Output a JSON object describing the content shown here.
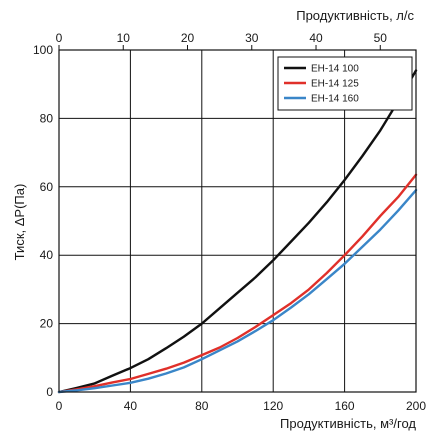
{
  "chart_data": {
    "type": "line",
    "xlabel": "Продуктивність, м³/год",
    "ylabel": "Тиск,  ΔР(Па)",
    "x2label": "Продуктивність, л/с",
    "xlim": [
      0,
      200
    ],
    "ylim": [
      0,
      100
    ],
    "x2lim": [
      0,
      55.56
    ],
    "xticks": [
      0,
      40,
      80,
      120,
      160,
      200
    ],
    "yticks": [
      0,
      20,
      40,
      60,
      80,
      100
    ],
    "x2ticks": [
      0,
      10,
      20,
      30,
      40,
      50
    ],
    "grid": true,
    "legend_position": "top-right",
    "series": [
      {
        "name": "ЕН-14 100",
        "color": "#111111",
        "points": [
          [
            0,
            0
          ],
          [
            10,
            1.2
          ],
          [
            20,
            2.5
          ],
          [
            30,
            4.8
          ],
          [
            40,
            7
          ],
          [
            50,
            9.6
          ],
          [
            60,
            12.8
          ],
          [
            70,
            16.2
          ],
          [
            80,
            20
          ],
          [
            90,
            24.5
          ],
          [
            100,
            29
          ],
          [
            110,
            33.5
          ],
          [
            120,
            38.5
          ],
          [
            130,
            44
          ],
          [
            140,
            49.5
          ],
          [
            150,
            55.5
          ],
          [
            160,
            62
          ],
          [
            170,
            69
          ],
          [
            180,
            76.5
          ],
          [
            190,
            85
          ],
          [
            200,
            94
          ]
        ]
      },
      {
        "name": "ЕН-14 125",
        "color": "#e0302a",
        "points": [
          [
            0,
            0
          ],
          [
            10,
            0.8
          ],
          [
            20,
            1.7
          ],
          [
            30,
            2.8
          ],
          [
            40,
            3.8
          ],
          [
            50,
            5.3
          ],
          [
            60,
            6.8
          ],
          [
            70,
            8.6
          ],
          [
            80,
            10.8
          ],
          [
            90,
            13
          ],
          [
            100,
            15.8
          ],
          [
            110,
            19
          ],
          [
            120,
            22.5
          ],
          [
            130,
            26
          ],
          [
            140,
            30
          ],
          [
            150,
            34.8
          ],
          [
            160,
            40
          ],
          [
            170,
            45.5
          ],
          [
            180,
            51.5
          ],
          [
            190,
            57
          ],
          [
            200,
            63.5
          ]
        ]
      },
      {
        "name": "ЕН-14 160",
        "color": "#3a86c8",
        "points": [
          [
            0,
            0
          ],
          [
            10,
            0.5
          ],
          [
            20,
            1.1
          ],
          [
            30,
            1.9
          ],
          [
            40,
            2.7
          ],
          [
            50,
            3.9
          ],
          [
            60,
            5.4
          ],
          [
            70,
            7.2
          ],
          [
            80,
            9.6
          ],
          [
            90,
            12.2
          ],
          [
            100,
            14.8
          ],
          [
            110,
            17.8
          ],
          [
            120,
            21
          ],
          [
            130,
            24.7
          ],
          [
            140,
            28.6
          ],
          [
            150,
            33
          ],
          [
            160,
            37.5
          ],
          [
            170,
            42.5
          ],
          [
            180,
            47.5
          ],
          [
            190,
            53
          ],
          [
            200,
            59
          ]
        ]
      }
    ]
  }
}
